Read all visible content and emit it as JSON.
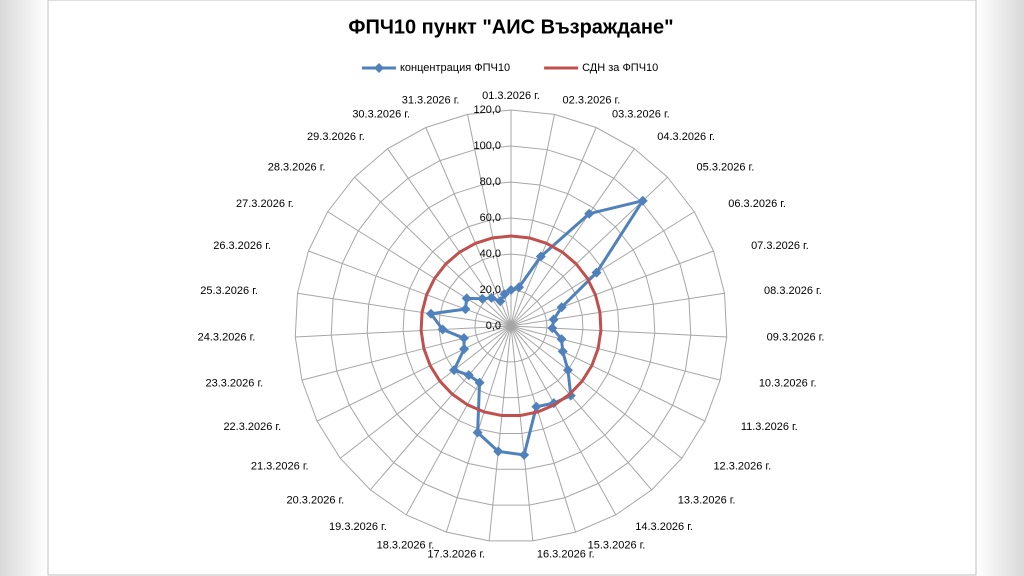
{
  "chart_data": {
    "type": "radar",
    "title": "ФПЧ10 пункт \"АИС Възраждане\"",
    "categories": [
      "01.3.2026 г.",
      "02.3.2026 г.",
      "03.3.2026 г.",
      "04.3.2026 г.",
      "05.3.2026 г.",
      "06.3.2026 г.",
      "07.3.2026 г.",
      "08.3.2026 г.",
      "09.3.2026 г.",
      "10.3.2026 г.",
      "11.3.2026 г.",
      "12.3.2026 г.",
      "13.3.2026 г.",
      "14.3.2026 г.",
      "15.3.2026 г.",
      "16.3.2026 г.",
      "17.3.2026 г.",
      "18.3.2026 г.",
      "19.3.2026 г.",
      "20.3.2026 г.",
      "21.3.2026 г.",
      "22.3.2026 г.",
      "23.3.2026 г.",
      "24.3.2026 г.",
      "25.3.2026 г.",
      "26.3.2026 г.",
      "27.3.2026 г.",
      "28.3.2026 г.",
      "29.3.2026 г.",
      "30.3.2026 г.",
      "31.3.2026 г."
    ],
    "series": [
      {
        "name": "концентрация ФПЧ10",
        "color": "#4f81bd",
        "marker": "diamond",
        "values": [
          20,
          22,
          42,
          76,
          101,
          56,
          30,
          24,
          23,
          29,
          32,
          40,
          51,
          49,
          47,
          72,
          70,
          62,
          36,
          36,
          40,
          29,
          27,
          38,
          45,
          27,
          29,
          22,
          19,
          15,
          18
        ]
      },
      {
        "name": "СДН за ФПЧ10",
        "color": "#c0504d",
        "marker": "none",
        "values": [
          50,
          50,
          50,
          50,
          50,
          50,
          50,
          50,
          50,
          50,
          50,
          50,
          50,
          50,
          50,
          50,
          50,
          50,
          50,
          50,
          50,
          50,
          50,
          50,
          50,
          50,
          50,
          50,
          50,
          50,
          50
        ]
      }
    ],
    "ylim": [
      0,
      120
    ],
    "yticks": [
      {
        "value": 0,
        "label": "0,0"
      },
      {
        "value": 20,
        "label": "20,0"
      },
      {
        "value": 40,
        "label": "40,0"
      },
      {
        "value": 60,
        "label": "60,0"
      },
      {
        "value": 80,
        "label": "80,0"
      },
      {
        "value": 100,
        "label": "100,0"
      },
      {
        "value": 120,
        "label": "120,0"
      }
    ],
    "grid": true,
    "legend": "top"
  }
}
